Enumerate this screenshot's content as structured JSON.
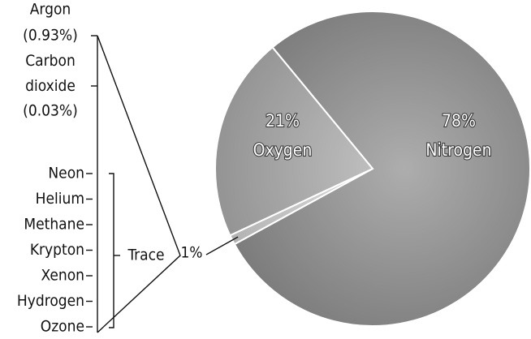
{
  "chart_data": {
    "type": "pie",
    "categories": [
      "Nitrogen",
      "Trace",
      "Oxygen"
    ],
    "values": [
      78,
      1,
      21
    ],
    "value_labels": [
      "78%",
      "1%",
      "21%"
    ],
    "colors": [
      "#8a8a8a",
      "#eeeeee",
      "#b8b8b8"
    ],
    "major_gases": [
      {
        "name": "Argon",
        "amount": "(0.93%)"
      },
      {
        "name": "Carbon dioxide",
        "amount": "(0.03%)"
      }
    ],
    "trace_gases": [
      "Neon",
      "Helium",
      "Methane",
      "Krypton",
      "Xenon",
      "Hydrogen",
      "Ozone"
    ]
  }
}
